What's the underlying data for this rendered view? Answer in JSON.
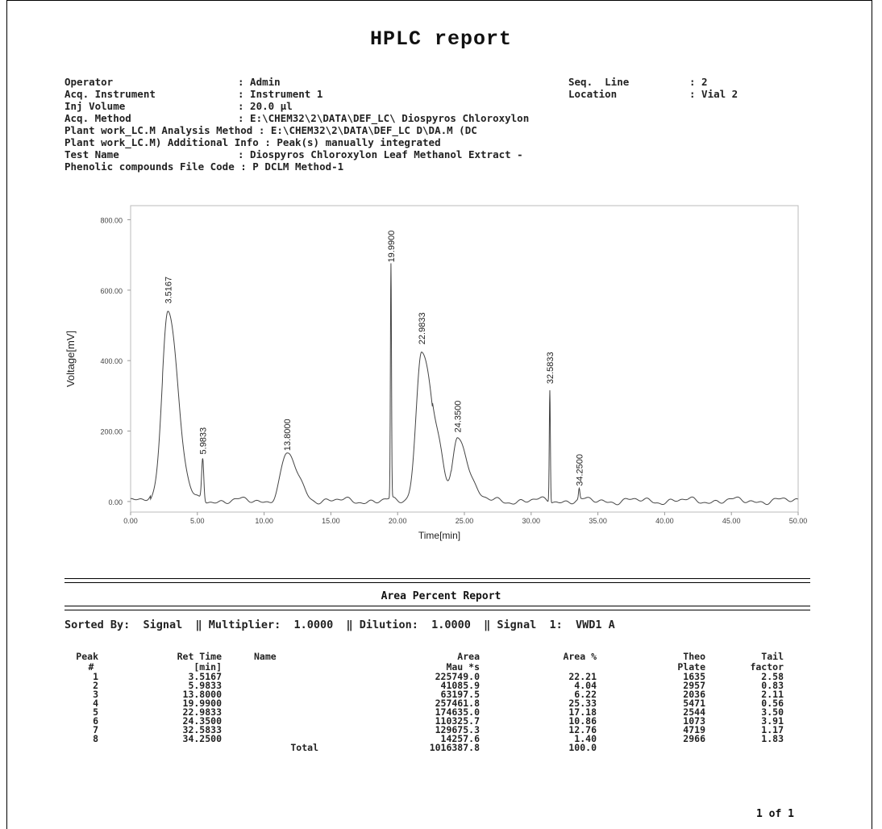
{
  "report": {
    "title": "HPLC report",
    "meta_left": [
      {
        "label": "Operator",
        "value": ": Admin"
      },
      {
        "label": "Acq. Instrument",
        "value": ": Instrument 1"
      },
      {
        "label": "Inj Volume",
        "value": ": 20.0 µl"
      },
      {
        "label": "Acq. Method",
        "value": ": E:\\CHEM32\\2\\DATA\\DEF_LC\\ Diospyros Chloroxylon"
      },
      {
        "label": "",
        "value": "Plant work_LC.M Analysis Method : E:\\CHEM32\\2\\DATA\\DEF_LC D\\DA.M (DC"
      },
      {
        "label": "",
        "value": "Plant work_LC.M) Additional Info : Peak(s) manually integrated"
      },
      {
        "label": "Test Name",
        "value": ": Diospyros Chloroxylon Leaf Methanol Extract -"
      },
      {
        "label": "",
        "value": "Phenolic compounds File Code : P DCLM Method-1"
      }
    ],
    "meta_right": [
      {
        "label": "Seq.  Line",
        "value": ": 2"
      },
      {
        "label": "Location",
        "value": ": Vial 2"
      }
    ]
  },
  "chart_data": {
    "type": "line",
    "xlabel": "Time[min]",
    "ylabel": "Voltage[mV]",
    "xlim": [
      0,
      50
    ],
    "ylim": [
      -30,
      840
    ],
    "x_ticks": [
      "0.00",
      "5.00",
      "10.00",
      "15.00",
      "20.00",
      "25.00",
      "30.00",
      "35.00",
      "40.00",
      "45.00",
      "50.00"
    ],
    "y_ticks": [
      "0.00",
      "200.00",
      "400.00",
      "600.00",
      "800.00"
    ],
    "peak_labels": [
      "3.5167",
      "5.9833",
      "13.8000",
      "19.9900",
      "22.9833",
      "24.3500",
      "32.5833",
      "34.2500"
    ],
    "peaks": [
      {
        "x": 2.8,
        "y": 548
      },
      {
        "x": 5.4,
        "y": 120
      },
      {
        "x": 11.7,
        "y": 130
      },
      {
        "x": 19.5,
        "y": 665
      },
      {
        "x": 21.8,
        "y": 432
      },
      {
        "x": 24.5,
        "y": 182
      },
      {
        "x": 31.4,
        "y": 320
      },
      {
        "x": 33.6,
        "y": 30
      }
    ]
  },
  "area_report": {
    "title": "Area Percent Report",
    "sorted_by": "Sorted By:  Signal  ‖ Multiplier:  1.0000  ‖ Dilution:  1.0000  ‖ Signal  1:  VWD1 A",
    "headers": [
      [
        "Peak",
        "#"
      ],
      [
        "Ret Time",
        "[min]"
      ],
      [
        "Name",
        ""
      ],
      [
        "Area",
        "Mau *s"
      ],
      [
        "Area %",
        ""
      ],
      [
        "Theo",
        "Plate"
      ],
      [
        "Tail",
        "factor"
      ]
    ],
    "rows": [
      [
        "1",
        "3.5167",
        "",
        "225749.0",
        "22.21",
        "1635",
        "2.58"
      ],
      [
        "2",
        "5.9833",
        "",
        "41085.9",
        "4.04",
        "2957",
        "0.83"
      ],
      [
        "3",
        "13.8000",
        "",
        "63197.5",
        "6.22",
        "2036",
        "2.11"
      ],
      [
        "4",
        "19.9900",
        "",
        "257461.8",
        "25.33",
        "5471",
        "0.56"
      ],
      [
        "5",
        "22.9833",
        "",
        "174635.0",
        "17.18",
        "2544",
        "3.50"
      ],
      [
        "6",
        "24.3500",
        "",
        "110325.7",
        "10.86",
        "1073",
        "3.91"
      ],
      [
        "7",
        "32.5833",
        "",
        "129675.3",
        "12.76",
        "4719",
        "1.17"
      ],
      [
        "8",
        "34.2500",
        "",
        "14257.6",
        "1.40",
        "2966",
        "1.83"
      ]
    ],
    "total_label": "Total",
    "total_area": "1016387.8",
    "total_pct": "100.0",
    "page": "1 of 1"
  }
}
